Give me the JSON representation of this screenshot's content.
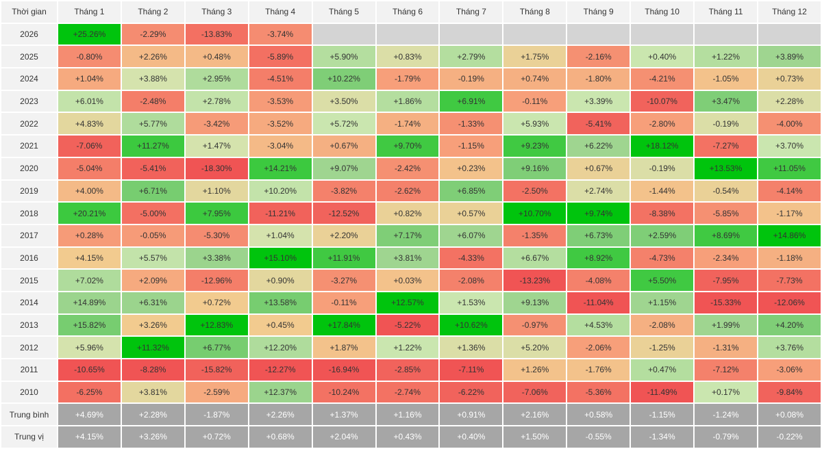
{
  "chart_data": {
    "type": "heatmap",
    "corner_label": "Thời gian",
    "columns": [
      "Tháng 1",
      "Tháng 2",
      "Tháng 3",
      "Tháng 4",
      "Tháng 5",
      "Tháng 6",
      "Tháng 7",
      "Tháng 8",
      "Tháng 9",
      "Tháng 10",
      "Tháng 11",
      "Tháng 12"
    ],
    "rows": [
      {
        "label": "2026",
        "values": [
          "+25.26%",
          "-2.29%",
          "-13.83%",
          "-3.74%",
          null,
          null,
          null,
          null,
          null,
          null,
          null,
          null
        ]
      },
      {
        "label": "2025",
        "values": [
          "-0.80%",
          "+2.26%",
          "+0.48%",
          "-5.89%",
          "+5.90%",
          "+0.83%",
          "+2.79%",
          "+1.75%",
          "-2.16%",
          "+0.40%",
          "+1.22%",
          "+3.89%"
        ]
      },
      {
        "label": "2024",
        "values": [
          "+1.04%",
          "+3.88%",
          "+2.95%",
          "-4.51%",
          "+10.22%",
          "-1.79%",
          "-0.19%",
          "+0.74%",
          "-1.80%",
          "-4.21%",
          "-1.05%",
          "+0.73%"
        ]
      },
      {
        "label": "2023",
        "values": [
          "+6.01%",
          "-2.48%",
          "+2.78%",
          "-3.53%",
          "+3.50%",
          "+1.86%",
          "+6.91%",
          "-0.11%",
          "+3.39%",
          "-10.07%",
          "+3.47%",
          "+2.28%"
        ]
      },
      {
        "label": "2022",
        "values": [
          "+4.83%",
          "+5.77%",
          "-3.42%",
          "-3.52%",
          "+5.72%",
          "-1.74%",
          "-1.33%",
          "+5.93%",
          "-5.41%",
          "-2.80%",
          "-0.19%",
          "-4.00%"
        ]
      },
      {
        "label": "2021",
        "values": [
          "-7.06%",
          "+11.27%",
          "+1.47%",
          "-3.04%",
          "+0.67%",
          "+9.70%",
          "-1.15%",
          "+9.23%",
          "+6.22%",
          "+18.12%",
          "-7.27%",
          "+3.70%"
        ]
      },
      {
        "label": "2020",
        "values": [
          "-5.04%",
          "-5.41%",
          "-18.30%",
          "+14.21%",
          "+9.07%",
          "-2.42%",
          "+0.23%",
          "+9.16%",
          "+0.67%",
          "-0.19%",
          "+13.53%",
          "+11.05%"
        ]
      },
      {
        "label": "2019",
        "values": [
          "+4.00%",
          "+6.71%",
          "+1.10%",
          "+10.20%",
          "-3.82%",
          "-2.62%",
          "+6.85%",
          "-2.50%",
          "+2.74%",
          "-1.44%",
          "-0.54%",
          "-4.14%"
        ]
      },
      {
        "label": "2018",
        "values": [
          "+20.21%",
          "-5.00%",
          "+7.95%",
          "-11.21%",
          "-12.52%",
          "+0.82%",
          "+0.57%",
          "+10.70%",
          "+9.74%",
          "-8.38%",
          "-5.85%",
          "-1.17%"
        ]
      },
      {
        "label": "2017",
        "values": [
          "+0.28%",
          "-0.05%",
          "-5.30%",
          "+1.04%",
          "+2.20%",
          "+7.17%",
          "+6.07%",
          "-1.35%",
          "+6.73%",
          "+2.59%",
          "+8.69%",
          "+14.86%"
        ]
      },
      {
        "label": "2016",
        "values": [
          "+4.15%",
          "+5.57%",
          "+3.38%",
          "+15.10%",
          "+11.91%",
          "+3.81%",
          "-4.33%",
          "+6.67%",
          "+8.92%",
          "-4.73%",
          "-2.34%",
          "-1.18%"
        ]
      },
      {
        "label": "2015",
        "values": [
          "+7.02%",
          "+2.09%",
          "-12.96%",
          "+0.90%",
          "-3.27%",
          "+0.03%",
          "-2.08%",
          "-13.23%",
          "-4.08%",
          "+5.50%",
          "-7.95%",
          "-7.73%"
        ]
      },
      {
        "label": "2014",
        "values": [
          "+14.89%",
          "+6.31%",
          "+0.72%",
          "+13.58%",
          "-0.11%",
          "+12.57%",
          "+1.53%",
          "+9.13%",
          "-11.04%",
          "+1.15%",
          "-15.33%",
          "-12.06%"
        ]
      },
      {
        "label": "2013",
        "values": [
          "+15.82%",
          "+3.26%",
          "+12.83%",
          "+0.45%",
          "+17.84%",
          "-5.22%",
          "+10.62%",
          "-0.97%",
          "+4.53%",
          "-2.08%",
          "+1.99%",
          "+4.20%"
        ]
      },
      {
        "label": "2012",
        "values": [
          "+5.96%",
          "+11.32%",
          "+6.77%",
          "+12.20%",
          "+1.87%",
          "+1.22%",
          "+1.36%",
          "+5.20%",
          "-2.06%",
          "-1.25%",
          "-1.31%",
          "+3.76%"
        ]
      },
      {
        "label": "2011",
        "values": [
          "-10.65%",
          "-8.28%",
          "-15.82%",
          "-12.27%",
          "-16.94%",
          "-2.85%",
          "-7.11%",
          "+1.26%",
          "-1.76%",
          "+0.47%",
          "-7.12%",
          "-3.06%"
        ]
      },
      {
        "label": "2010",
        "values": [
          "-6.25%",
          "+3.81%",
          "-2.59%",
          "+12.37%",
          "-10.24%",
          "-2.74%",
          "-6.22%",
          "-7.06%",
          "-5.36%",
          "-11.49%",
          "+0.17%",
          "-9.84%"
        ]
      }
    ],
    "summary_rows": [
      {
        "label": "Trung bình",
        "values": [
          "+4.69%",
          "+2.28%",
          "-1.87%",
          "+2.26%",
          "+1.37%",
          "+1.16%",
          "+0.91%",
          "+2.16%",
          "+0.58%",
          "-1.15%",
          "-1.24%",
          "+0.08%"
        ]
      },
      {
        "label": "Trung vị",
        "values": [
          "+4.15%",
          "+3.26%",
          "+0.72%",
          "+0.68%",
          "+2.04%",
          "+0.43%",
          "+0.40%",
          "+1.50%",
          "-0.55%",
          "-1.34%",
          "-0.79%",
          "-0.22%"
        ]
      }
    ],
    "color_scale": {
      "positive_strong": "#00c40d",
      "positive_mid": "#8fcf84",
      "positive_light": "#cfe8b3",
      "neutral": "#f2cb8f",
      "negative_light": "#f7a37c",
      "negative_strong": "#f05454",
      "empty": "#d4d4d4",
      "summary_bg": "#a6a6a6",
      "header_bg": "#f2f2f2"
    }
  }
}
